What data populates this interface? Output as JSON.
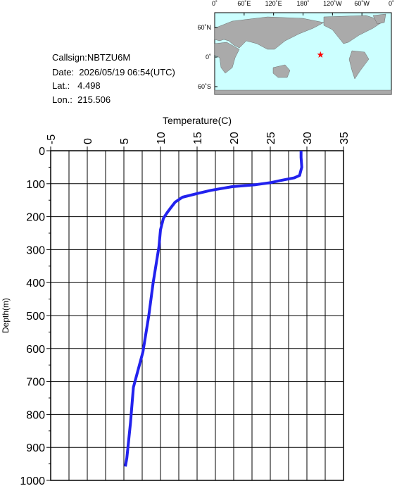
{
  "info": {
    "callsign": "Callsign:NBTZU6M",
    "date": "Date:  2026/05/19 06:54(UTC)",
    "lat": "Lat.:   4.498",
    "lon": "Lon.:  215.506"
  },
  "map": {
    "lon": 215.506,
    "lat": 4.498,
    "marker_color": "#ff0000",
    "lonticks": [
      {
        "value": 0,
        "label": "0˚"
      },
      {
        "value": 60,
        "label": "60˚E"
      },
      {
        "value": 120,
        "label": "120˚E"
      },
      {
        "value": 180,
        "label": "180˚"
      },
      {
        "value": 240,
        "label": "120˚W"
      },
      {
        "value": 300,
        "label": "60˚W"
      },
      {
        "value": 360,
        "label": "0˚"
      }
    ],
    "latticks": [
      {
        "value": 60,
        "label": "60˚N"
      },
      {
        "value": 0,
        "label": "0˚"
      },
      {
        "value": -60,
        "label": "60˚S"
      }
    ]
  },
  "chart_data": {
    "type": "profile",
    "xlabel": "Temperature(C)",
    "ylabel": "Depth(m)",
    "color": "#2222ee",
    "xlim": [
      -5,
      35
    ],
    "xticks": [
      -5,
      0,
      5,
      10,
      15,
      20,
      25,
      30,
      35
    ],
    "ylim": [
      0,
      1000
    ],
    "yticks": [
      0,
      100,
      200,
      300,
      400,
      500,
      600,
      700,
      800,
      900,
      1000
    ],
    "y_inverted": true,
    "grid": true,
    "x": [
      29.2,
      29.2,
      29.3,
      29.0,
      28.3,
      26.5,
      25.0,
      23.0,
      19.8,
      16.9,
      15.0,
      13.0,
      12.0,
      11.4,
      10.9,
      10.4,
      10.0,
      9.8,
      9.0,
      8.4,
      7.6,
      6.3,
      5.9,
      5.4,
      5.2
    ],
    "values": [
      0,
      20,
      50,
      75,
      82,
      90,
      97,
      103,
      109,
      120,
      130,
      141,
      156,
      173,
      188,
      205,
      240,
      290,
      400,
      500,
      611,
      718,
      825,
      932,
      958
    ]
  }
}
